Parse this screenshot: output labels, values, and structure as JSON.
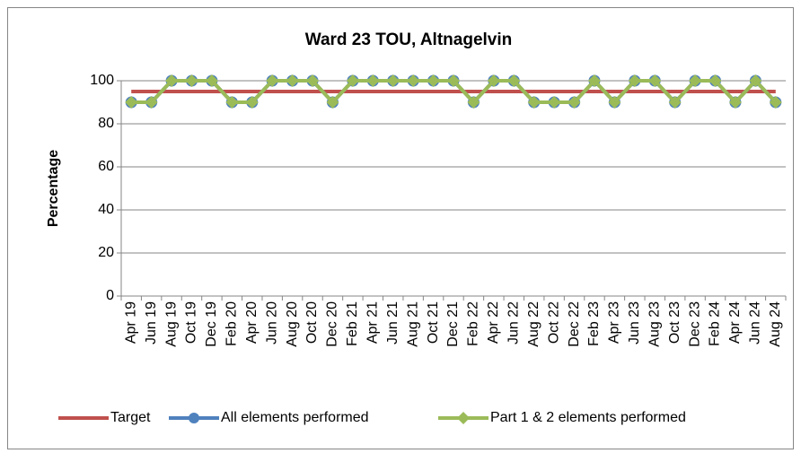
{
  "chart_data": {
    "type": "line",
    "title": "Ward 23 TOU, Altnagelvin",
    "y_label": "Percentage",
    "categories": [
      "Apr 19",
      "Jun 19",
      "Aug 19",
      "Oct 19",
      "Dec 19",
      "Feb 20",
      "Apr 20",
      "Jun 20",
      "Aug 20",
      "Oct 20",
      "Dec 20",
      "Feb 21",
      "Apr 21",
      "Jun 21",
      "Aug 21",
      "Oct 21",
      "Dec 21",
      "Feb 22",
      "Apr 22",
      "Jun 22",
      "Aug 22",
      "Oct 22",
      "Dec 22",
      "Feb 23",
      "Apr 23",
      "Jun 23",
      "Aug 23",
      "Oct 23",
      "Dec 23",
      "Feb 24",
      "Apr 24",
      "Jun 24",
      "Aug 24"
    ],
    "series": [
      {
        "name": "Target",
        "color": "#c0504d",
        "marker": "none",
        "values": [
          95,
          95,
          95,
          95,
          95,
          95,
          95,
          95,
          95,
          95,
          95,
          95,
          95,
          95,
          95,
          95,
          95,
          95,
          95,
          95,
          95,
          95,
          95,
          95,
          95,
          95,
          95,
          95,
          95,
          95,
          95,
          95,
          95
        ]
      },
      {
        "name": "All elements performed",
        "color": "#4f81bd",
        "marker": "circle",
        "values": [
          90,
          90,
          100,
          100,
          100,
          90,
          90,
          100,
          100,
          100,
          90,
          100,
          100,
          100,
          100,
          100,
          100,
          90,
          100,
          100,
          90,
          90,
          90,
          100,
          90,
          100,
          100,
          90,
          100,
          100,
          90,
          100,
          90
        ]
      },
      {
        "name": "Part 1 & 2 elements performed",
        "color": "#9bbb59",
        "marker": "diamond",
        "values": [
          90,
          90,
          100,
          100,
          100,
          90,
          90,
          100,
          100,
          100,
          90,
          100,
          100,
          100,
          100,
          100,
          100,
          90,
          100,
          100,
          90,
          90,
          90,
          100,
          90,
          100,
          100,
          90,
          100,
          100,
          90,
          100,
          90
        ]
      }
    ],
    "ylim": [
      0,
      100
    ],
    "yticks": [
      0,
      20,
      40,
      60,
      80,
      100
    ],
    "grid": true,
    "legend": "bottom"
  }
}
